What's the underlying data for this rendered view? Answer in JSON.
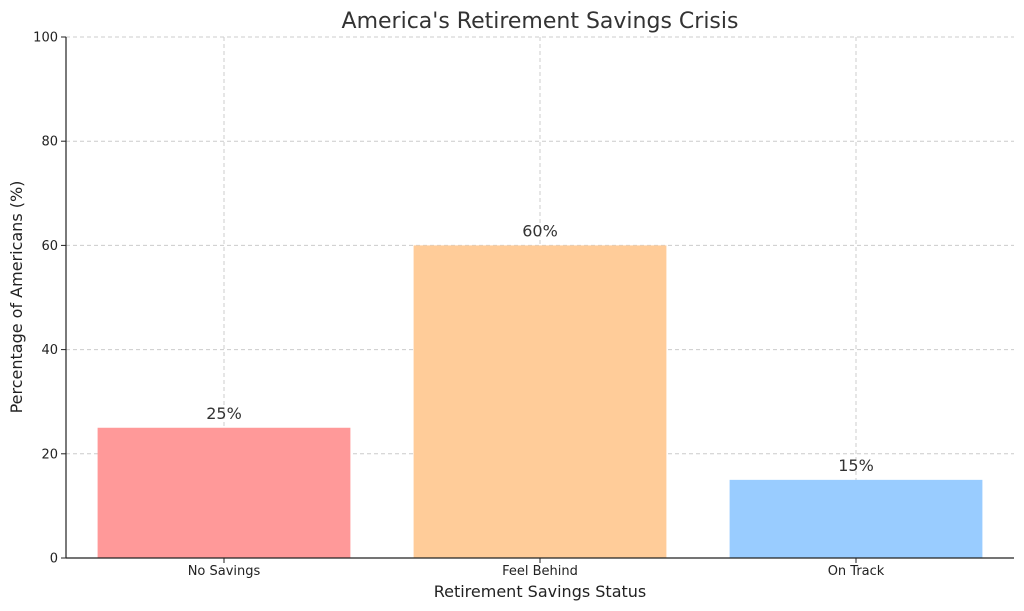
{
  "chart_data": {
    "type": "bar",
    "title": "America's Retirement Savings Crisis",
    "xlabel": "Retirement Savings Status",
    "ylabel": "Percentage of Americans (%)",
    "categories": [
      "No Savings",
      "Feel Behind",
      "On Track"
    ],
    "values": [
      25,
      60,
      15
    ],
    "data_labels": [
      "25%",
      "60%",
      "15%"
    ],
    "colors": [
      "#ff9999",
      "#ffcc99",
      "#99ccff"
    ],
    "ylim": [
      0,
      100
    ],
    "yticks": [
      0,
      20,
      40,
      60,
      80,
      100
    ],
    "ytick_labels": [
      "0",
      "20",
      "40",
      "60",
      "80",
      "100"
    ],
    "grid": true,
    "legend": "none"
  }
}
